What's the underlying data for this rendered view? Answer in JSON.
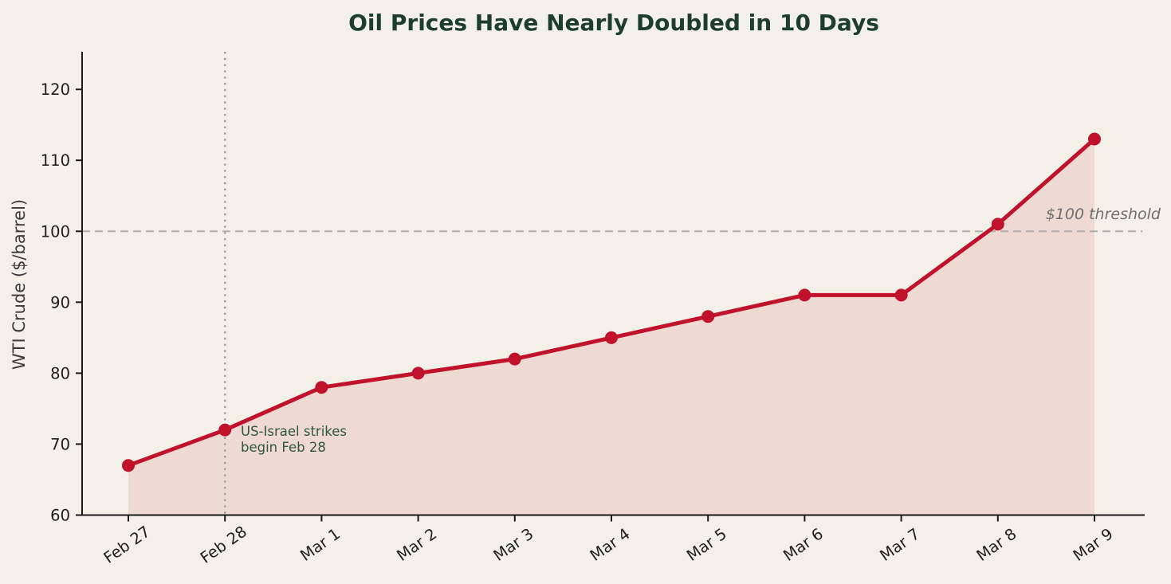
{
  "figure": {
    "background_color": "#f3f0e9",
    "title_color": "#1d3e2c"
  },
  "chart_data": {
    "type": "line",
    "title": "Oil Prices Have Nearly Doubled in 10 Days",
    "xlabel": "",
    "ylabel": "WTI Crude ($/barrel)",
    "categories": [
      "Feb 27",
      "Feb 28",
      "Mar 1",
      "Mar 2",
      "Mar 3",
      "Mar 4",
      "Mar 5",
      "Mar 6",
      "Mar 7",
      "Mar 8",
      "Mar 9"
    ],
    "series": [
      {
        "name": "WTI Crude ($/barrel)",
        "values": [
          67,
          72,
          78,
          80,
          82,
          85,
          88,
          91,
          91,
          101,
          113
        ],
        "color": "#c1122c",
        "marker": "circle",
        "area_fill": true,
        "area_fill_color": "#eed9d3"
      }
    ],
    "ylim": [
      60,
      125.3
    ],
    "yticks": [
      60,
      70,
      80,
      90,
      100,
      110,
      120
    ],
    "grid": false,
    "legend": "none",
    "axis_color": "#1a1a1a",
    "tick_label_color": "#1f1f1f",
    "ylabel_color": "#3b3b3b",
    "annotations": {
      "threshold_line": {
        "y": 100,
        "style": "dashed",
        "color": "#a8a8a8",
        "label": "$100 threshold",
        "label_color": "#6e6e6e"
      },
      "event_line": {
        "x": "Feb 28",
        "style": "dotted",
        "color": "#98a29a",
        "label_lines": [
          "US-Israel strikes",
          "begin Feb 28"
        ],
        "label_color": "#2e5741"
      }
    }
  }
}
